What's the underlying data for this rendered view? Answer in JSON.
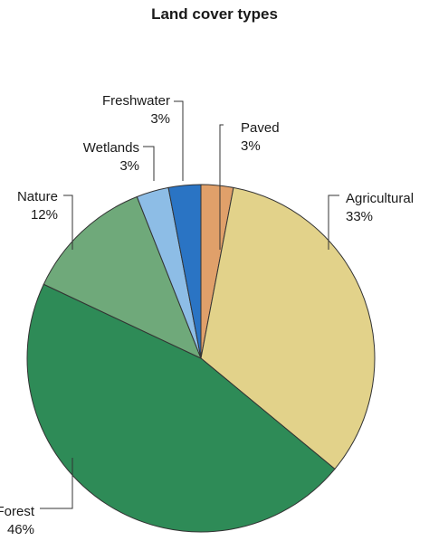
{
  "chart_data": {
    "type": "pie",
    "title": "Land cover types",
    "start_angle_deg": 0,
    "direction": "clockwise",
    "slices": [
      {
        "label": "Paved",
        "value": 3,
        "value_label": "3%",
        "color": "#E0A06A"
      },
      {
        "label": "Agricultural",
        "value": 33,
        "value_label": "33%",
        "color": "#E2D28A"
      },
      {
        "label": "Forest",
        "value": 46,
        "value_label": "46%",
        "color": "#2E8B57"
      },
      {
        "label": "Nature",
        "value": 12,
        "value_label": "12%",
        "color": "#6FA97A"
      },
      {
        "label": "Wetlands",
        "value": 3,
        "value_label": "3%",
        "color": "#8DBDE6"
      },
      {
        "label": "Freshwater",
        "value": 3,
        "value_label": "3%",
        "color": "#2A74C4"
      }
    ]
  }
}
